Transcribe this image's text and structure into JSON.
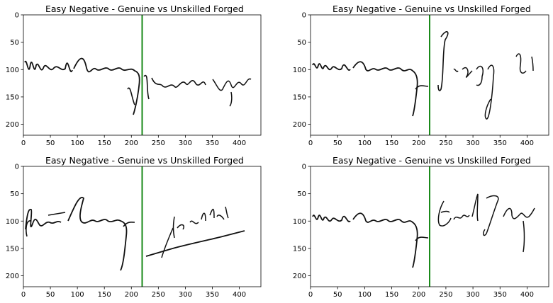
{
  "colors": {
    "divider": "#1a8a1a",
    "ink": "#111111",
    "axis": "#000000"
  },
  "x_ticks": [
    "0",
    "50",
    "100",
    "150",
    "200",
    "250",
    "300",
    "350",
    "400"
  ],
  "x_tick_values": [
    0,
    50,
    100,
    150,
    200,
    250,
    300,
    350,
    400
  ],
  "y_ticks": [
    "0",
    "50",
    "100",
    "150",
    "200"
  ],
  "y_tick_values": [
    0,
    50,
    100,
    150,
    200
  ],
  "image_extent": {
    "width": 440,
    "height": 220
  },
  "divider_x": 220,
  "panels": [
    {
      "title": "Easy Negative - Genuine vs Unskilled Forged",
      "genuine_text": "Matthew Sweeney",
      "forged_text": "Kailash Vijai"
    },
    {
      "title": "Easy Negative - Genuine vs Unskilled Forged",
      "genuine_text": "Matthew Sweeney",
      "forged_text": "Jiang Li"
    },
    {
      "title": "Easy Negative - Genuine vs Unskilled Forged",
      "genuine_text": "Matthew Sweeney",
      "forged_text": "Karthik"
    },
    {
      "title": "Easy Negative - Genuine vs Unskilled Forged",
      "genuine_text": "Matthew Sweeney",
      "forged_text": "Edward J Gobyak"
    }
  ]
}
